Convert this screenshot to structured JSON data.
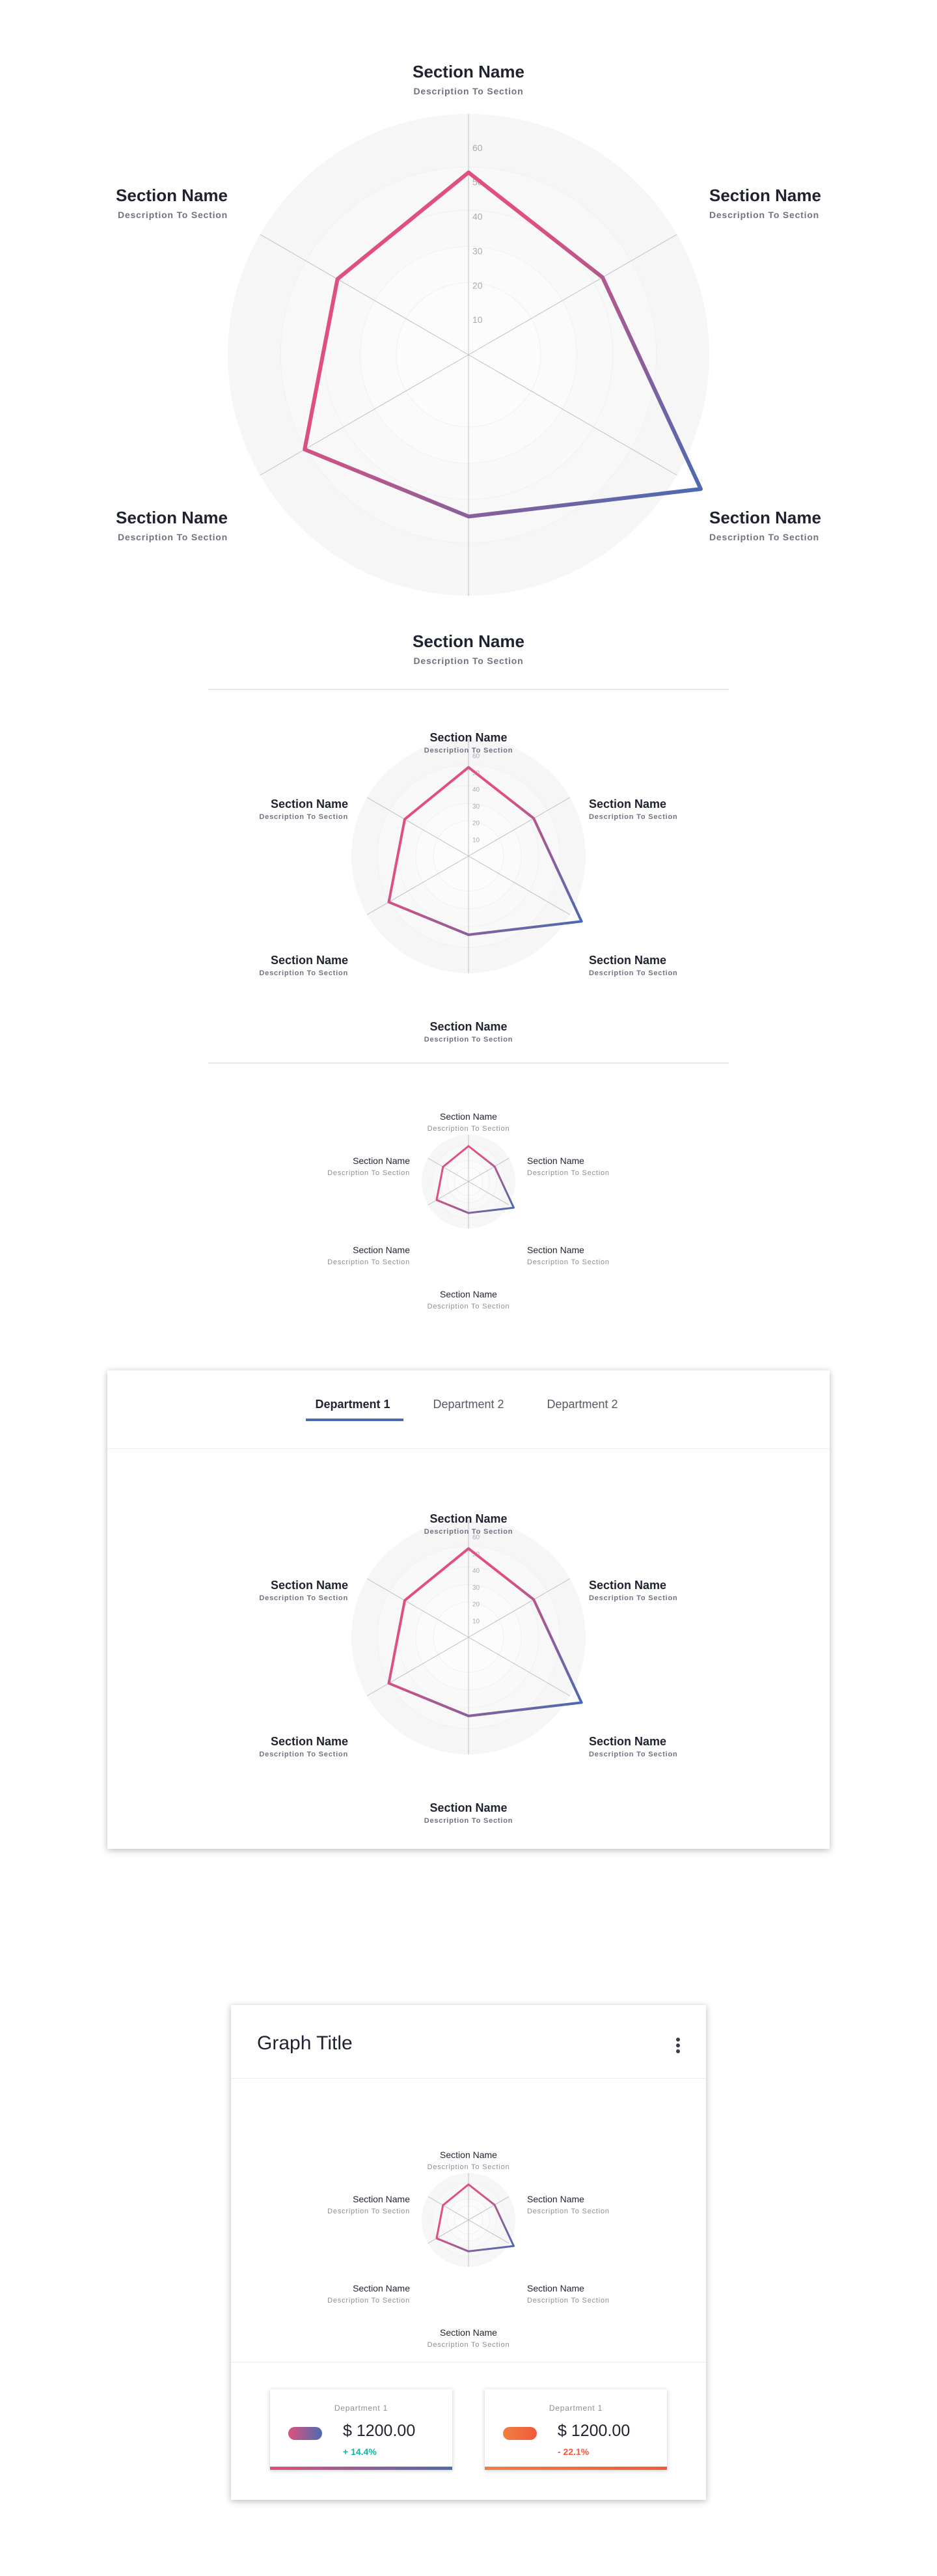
{
  "colors": {
    "accent_pink": "#e0507e",
    "accent_blue": "#4d6ab0",
    "accent_orange_1": "#f08040",
    "accent_orange_2": "#f05a3c",
    "positive": "#16b4a0",
    "negative": "#f05a3c",
    "bg_ring_1": "#f6f6f7",
    "bg_ring_2": "#fbfbfb"
  },
  "chart_data": {
    "type": "radar",
    "axes": [
      {
        "name": "Section Name",
        "description": "Description To Section"
      },
      {
        "name": "Section Name",
        "description": "Description To Section"
      },
      {
        "name": "Section Name",
        "description": "Description To Section"
      },
      {
        "name": "Section Name",
        "description": "Description To Section"
      },
      {
        "name": "Section Name",
        "description": "Description To Section"
      },
      {
        "name": "Section Name",
        "description": "Description To Section"
      }
    ],
    "values": [
      53,
      45,
      78,
      47,
      55,
      44
    ],
    "rlim": [
      0,
      70
    ],
    "ticks": [
      10,
      20,
      30,
      40,
      50,
      60
    ],
    "tick_labels": [
      "10",
      "20",
      "30",
      "40",
      "50",
      "60"
    ],
    "grid": true
  },
  "tabs": [
    {
      "label": "Department 1",
      "active": true
    },
    {
      "label": "Department 2",
      "active": false
    },
    {
      "label": "Department 2",
      "active": false
    }
  ],
  "graph_card": {
    "title": "Graph Title",
    "menu_icon": "kebab-menu-icon",
    "stats": [
      {
        "department": "Department 1",
        "value": "$ 1200.00",
        "change": "+ 14.4%",
        "trend": "positive",
        "gradient": [
          "#e0507e",
          "#4d6ab0"
        ]
      },
      {
        "department": "Department 1",
        "value": "$ 1200.00",
        "change": "- 22.1%",
        "trend": "negative",
        "gradient": [
          "#f08040",
          "#f05a3c"
        ]
      }
    ]
  }
}
